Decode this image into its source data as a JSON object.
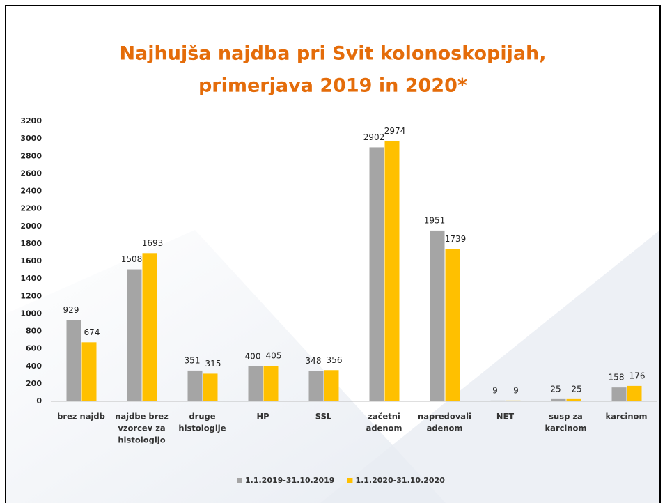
{
  "chart_data": {
    "type": "bar",
    "title": [
      "Najhujša najdba pri Svit kolonoskopijah,",
      "primerjava 2019 in 2020*"
    ],
    "categories": [
      [
        "brez najdb"
      ],
      [
        "najdbe brez",
        "vzorcev za",
        "histologijo"
      ],
      [
        "druge",
        "histologije"
      ],
      [
        "HP"
      ],
      [
        "SSL"
      ],
      [
        "začetni",
        "adenom"
      ],
      [
        "napredovali",
        "adenom"
      ],
      [
        "NET"
      ],
      [
        "susp za",
        "karcinom"
      ],
      [
        "karcinom"
      ]
    ],
    "series": [
      {
        "name": "1.1.2019-31.10.2019",
        "color": "#a5a5a5",
        "values": [
          929,
          1508,
          351,
          400,
          348,
          2902,
          1951,
          9,
          25,
          158
        ]
      },
      {
        "name": "1.1.2020-31.10.2020",
        "color": "#ffc000",
        "values": [
          674,
          1693,
          315,
          405,
          356,
          2974,
          1739,
          9,
          25,
          176
        ]
      }
    ],
    "ylim": [
      0,
      3200
    ],
    "yticks": [
      0,
      200,
      400,
      600,
      800,
      1000,
      1200,
      1400,
      1600,
      1800,
      2000,
      2200,
      2400,
      2600,
      2800,
      3000,
      3200
    ],
    "legend": "bottom"
  }
}
